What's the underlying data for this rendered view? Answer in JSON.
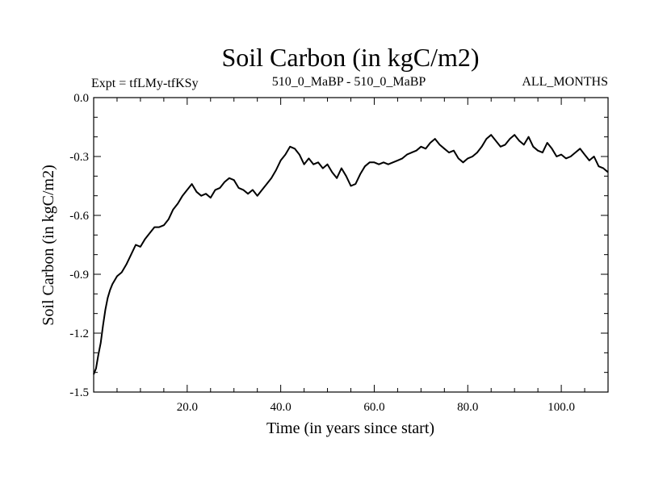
{
  "chart_data": {
    "type": "line",
    "title": "Soil Carbon (in kgC/m2)",
    "subtitle_left": "Expt = tfLMy-tfKSy",
    "subtitle_center": "510_0_MaBP - 510_0_MaBP",
    "subtitle_right": "ALL_MONTHS",
    "xlabel": "Time (in years since start)",
    "ylabel": "Soil Carbon (in kgC/m2)",
    "xlim": [
      0,
      110
    ],
    "ylim": [
      -1.5,
      0.0
    ],
    "xticks": [
      20,
      40,
      60,
      80,
      100
    ],
    "xtick_labels": [
      "20.0",
      "40.0",
      "60.0",
      "80.0",
      "100.0"
    ],
    "yticks": [
      0.0,
      -0.3,
      -0.6,
      -0.9,
      -1.2,
      -1.5
    ],
    "ytick_labels": [
      "0.0",
      "-0.3",
      "-0.6",
      "-0.9",
      "-1.2",
      "-1.5"
    ],
    "grid": false,
    "series": [
      {
        "name": "Soil Carbon",
        "x": [
          0,
          0.5,
          1,
          1.5,
          2,
          2.5,
          3,
          3.5,
          4,
          5,
          6,
          7,
          8,
          9,
          10,
          11,
          12,
          13,
          14,
          15,
          16,
          17,
          18,
          19,
          20,
          21,
          22,
          23,
          24,
          25,
          26,
          27,
          28,
          29,
          30,
          31,
          32,
          33,
          34,
          35,
          36,
          37,
          38,
          39,
          40,
          41,
          42,
          43,
          44,
          45,
          46,
          47,
          48,
          49,
          50,
          51,
          52,
          53,
          54,
          55,
          56,
          57,
          58,
          59,
          60,
          61,
          62,
          63,
          64,
          65,
          66,
          67,
          68,
          69,
          70,
          71,
          72,
          73,
          74,
          75,
          76,
          77,
          78,
          79,
          80,
          81,
          82,
          83,
          84,
          85,
          86,
          87,
          88,
          89,
          90,
          91,
          92,
          93,
          94,
          95,
          96,
          97,
          98,
          99,
          100,
          101,
          102,
          103,
          104,
          105,
          106,
          107,
          108,
          109,
          110
        ],
        "y": [
          -1.41,
          -1.38,
          -1.31,
          -1.25,
          -1.16,
          -1.08,
          -1.02,
          -0.98,
          -0.95,
          -0.91,
          -0.89,
          -0.85,
          -0.8,
          -0.75,
          -0.76,
          -0.72,
          -0.69,
          -0.66,
          -0.66,
          -0.65,
          -0.62,
          -0.57,
          -0.54,
          -0.5,
          -0.47,
          -0.44,
          -0.48,
          -0.5,
          -0.49,
          -0.51,
          -0.47,
          -0.46,
          -0.43,
          -0.41,
          -0.42,
          -0.46,
          -0.47,
          -0.49,
          -0.47,
          -0.5,
          -0.47,
          -0.44,
          -0.41,
          -0.37,
          -0.32,
          -0.29,
          -0.25,
          -0.26,
          -0.29,
          -0.34,
          -0.31,
          -0.34,
          -0.33,
          -0.36,
          -0.34,
          -0.38,
          -0.41,
          -0.36,
          -0.4,
          -0.45,
          -0.44,
          -0.39,
          -0.35,
          -0.33,
          -0.33,
          -0.34,
          -0.33,
          -0.34,
          -0.33,
          -0.32,
          -0.31,
          -0.29,
          -0.28,
          -0.27,
          -0.25,
          -0.26,
          -0.23,
          -0.21,
          -0.24,
          -0.26,
          -0.28,
          -0.27,
          -0.31,
          -0.33,
          -0.31,
          -0.3,
          -0.28,
          -0.25,
          -0.21,
          -0.19,
          -0.22,
          -0.25,
          -0.24,
          -0.21,
          -0.19,
          -0.22,
          -0.24,
          -0.2,
          -0.25,
          -0.27,
          -0.28,
          -0.23,
          -0.26,
          -0.3,
          -0.29,
          -0.31,
          -0.3,
          -0.28,
          -0.26,
          -0.29,
          -0.32,
          -0.3,
          -0.35,
          -0.36,
          -0.38
        ]
      }
    ]
  }
}
